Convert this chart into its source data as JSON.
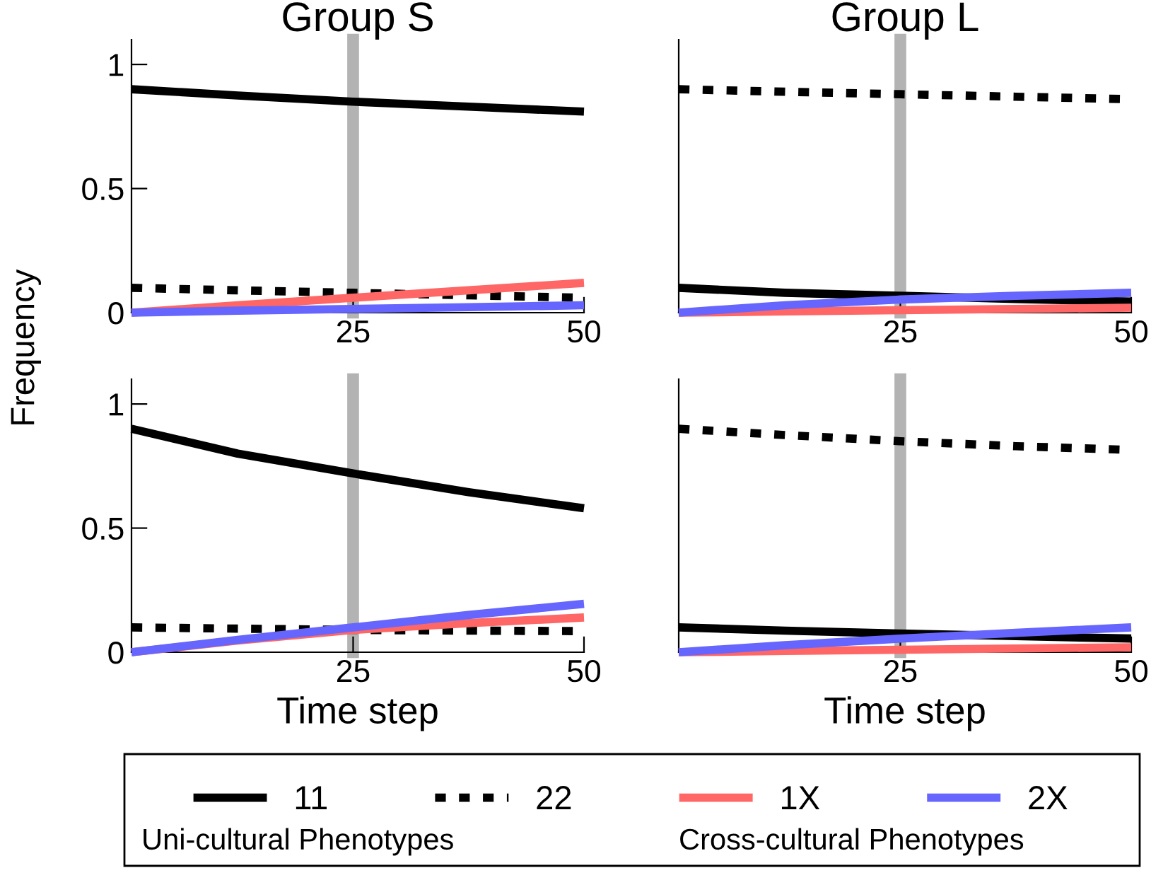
{
  "chart_data": [
    {
      "type": "line",
      "title": "Group S",
      "ylabel": "Frequency",
      "x": [
        1,
        12.5,
        25,
        37.5,
        50
      ],
      "xlim": [
        1,
        50
      ],
      "xticks": [
        25,
        50
      ],
      "ylim": [
        0,
        1.1
      ],
      "yticks": [
        0,
        0.5,
        1
      ],
      "grid": false,
      "legend": "bottom",
      "annotations": [
        "Uni-cultural Phenotypes",
        "Cross-cultural Phenotypes"
      ],
      "ref_lines": [
        {
          "axis": "x",
          "value": 25,
          "color": "#b3b3b3"
        }
      ],
      "series": [
        {
          "name": "11",
          "color": "#000000",
          "line_style": "solid",
          "values": [
            0.9,
            0.875,
            0.85,
            0.83,
            0.81
          ]
        },
        {
          "name": "22",
          "color": "#000000",
          "line_style": "dotted",
          "values": [
            0.1,
            0.09,
            0.08,
            0.07,
            0.06
          ]
        },
        {
          "name": "1X",
          "color": "#ff6666",
          "line_style": "solid",
          "values": [
            0,
            0.03,
            0.06,
            0.09,
            0.12
          ]
        },
        {
          "name": "2X",
          "color": "#6666ff",
          "line_style": "solid",
          "values": [
            0,
            0.008,
            0.015,
            0.022,
            0.03
          ]
        }
      ]
    },
    {
      "type": "line",
      "title": "Group L",
      "x": [
        1,
        12.5,
        25,
        37.5,
        50
      ],
      "xlim": [
        1,
        50
      ],
      "xticks": [
        25,
        50
      ],
      "ylim": [
        0,
        1.1
      ],
      "tick_labels": "x",
      "grid": false,
      "legend": false,
      "ref_lines": [
        {
          "axis": "x",
          "value": 25,
          "color": "#b3b3b3"
        }
      ],
      "series": [
        {
          "color": "#000000",
          "line_style": "solid",
          "values": [
            0.1,
            0.08,
            0.068,
            0.055,
            0.045
          ]
        },
        {
          "color": "#000000",
          "line_style": "dotted",
          "values": [
            0.9,
            0.89,
            0.88,
            0.87,
            0.86
          ]
        },
        {
          "color": "#ff6666",
          "line_style": "solid",
          "values": [
            0,
            0.005,
            0.01,
            0.015,
            0.02
          ]
        },
        {
          "color": "#6666ff",
          "line_style": "solid",
          "values": [
            0,
            0.03,
            0.053,
            0.068,
            0.08
          ]
        }
      ]
    },
    {
      "type": "line",
      "xlabel": "Time step",
      "x": [
        1,
        12.5,
        25,
        37.5,
        50
      ],
      "xlim": [
        1,
        50
      ],
      "xticks": [
        25,
        50
      ],
      "ylim": [
        0,
        1.1
      ],
      "yticks": [
        0,
        0.5,
        1
      ],
      "grid": false,
      "legend": false,
      "ref_lines": [
        {
          "axis": "x",
          "value": 25,
          "color": "#b3b3b3"
        }
      ],
      "series": [
        {
          "color": "#000000",
          "line_style": "solid",
          "values": [
            0.9,
            0.8,
            0.72,
            0.645,
            0.58
          ]
        },
        {
          "color": "#000000",
          "line_style": "dotted",
          "values": [
            0.1,
            0.095,
            0.09,
            0.087,
            0.085
          ]
        },
        {
          "color": "#ff6666",
          "line_style": "solid",
          "values": [
            0,
            0.047,
            0.09,
            0.117,
            0.14
          ]
        },
        {
          "color": "#6666ff",
          "line_style": "solid",
          "values": [
            0,
            0.05,
            0.1,
            0.15,
            0.195
          ]
        }
      ]
    },
    {
      "type": "line",
      "xlabel": "Time step",
      "x": [
        1,
        12.5,
        25,
        37.5,
        50
      ],
      "xlim": [
        1,
        50
      ],
      "xticks": [
        25,
        50
      ],
      "ylim": [
        0,
        1.1
      ],
      "tick_labels": "x",
      "grid": false,
      "legend": false,
      "ref_lines": [
        {
          "axis": "x",
          "value": 25,
          "color": "#b3b3b3"
        }
      ],
      "series": [
        {
          "color": "#000000",
          "line_style": "solid",
          "values": [
            0.1,
            0.087,
            0.075,
            0.065,
            0.055
          ]
        },
        {
          "color": "#000000",
          "line_style": "dotted",
          "values": [
            0.9,
            0.875,
            0.85,
            0.83,
            0.815
          ]
        },
        {
          "color": "#ff6666",
          "line_style": "solid",
          "values": [
            0,
            0.005,
            0.01,
            0.015,
            0.02
          ]
        },
        {
          "color": "#6666ff",
          "line_style": "solid",
          "values": [
            0,
            0.028,
            0.055,
            0.078,
            0.1
          ]
        }
      ]
    }
  ]
}
